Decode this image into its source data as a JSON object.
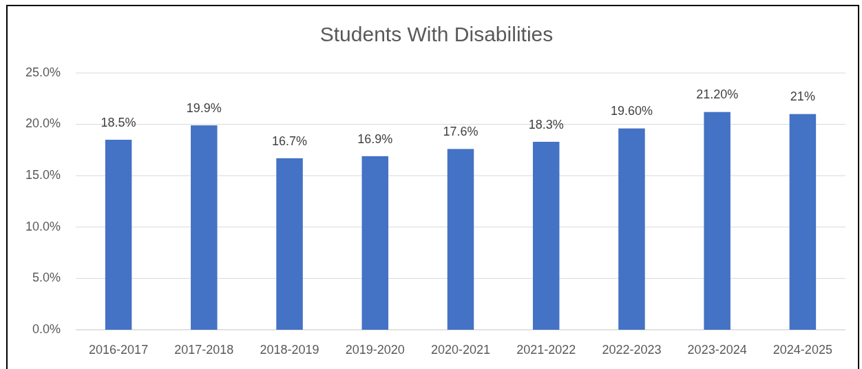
{
  "chart_data": {
    "type": "bar",
    "title": "Students With Disabilities",
    "categories": [
      "2016-2017",
      "2017-2018",
      "2018-2019",
      "2019-2020",
      "2020-2021",
      "2021-2022",
      "2022-2023",
      "2023-2024",
      "2024-2025"
    ],
    "values": [
      18.5,
      19.9,
      16.7,
      16.9,
      17.6,
      18.3,
      19.6,
      21.2,
      21
    ],
    "value_labels": [
      "18.5%",
      "19.9%",
      "16.7%",
      "16.9%",
      "17.6%",
      "18.3%",
      "19.60%",
      "21.20%",
      "21%"
    ],
    "color": "#4472c4",
    "ylim": [
      0,
      25
    ],
    "yticks": [
      {
        "value": 0,
        "label": "0.0%"
      },
      {
        "value": 5,
        "label": "5.0%"
      },
      {
        "value": 10,
        "label": "10.0%"
      },
      {
        "value": 15,
        "label": "15.0%"
      },
      {
        "value": 20,
        "label": "20.0%"
      },
      {
        "value": 25,
        "label": "25.0%"
      }
    ],
    "grid": "y"
  }
}
